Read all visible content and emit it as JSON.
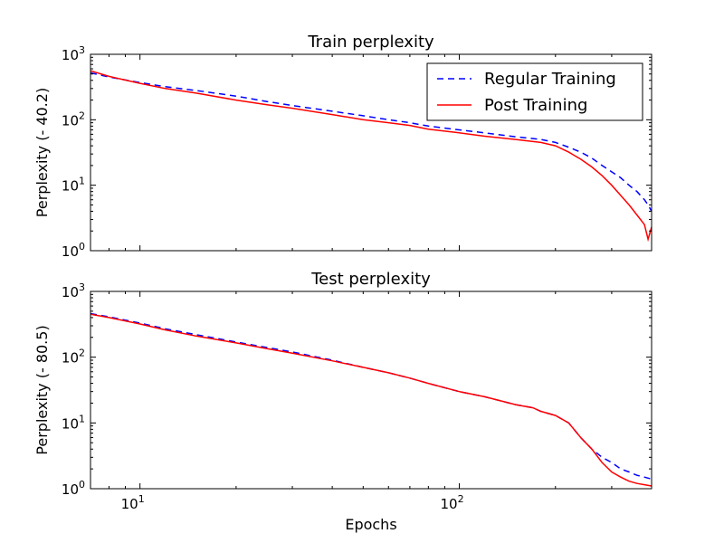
{
  "chart_data": [
    {
      "type": "line",
      "title": "Train perplexity",
      "xlabel": "",
      "ylabel": "Perplexity (- 40.2)",
      "xscale": "log",
      "yscale": "log",
      "xlim": [
        7,
        400
      ],
      "ylim": [
        1,
        1000
      ],
      "yticks": [
        {
          "value": 1,
          "base": "10",
          "exp": "0"
        },
        {
          "value": 10,
          "base": "10",
          "exp": "1"
        },
        {
          "value": 100,
          "base": "10",
          "exp": "2"
        },
        {
          "value": 1000,
          "base": "10",
          "exp": "3"
        }
      ],
      "legend_position": "top-right",
      "grid": false,
      "series": [
        {
          "name": "Regular Training",
          "color": "#0000ff",
          "linestyle": "dashed",
          "x": [
            7,
            8,
            10,
            12,
            15,
            20,
            25,
            30,
            40,
            50,
            60,
            70,
            80,
            100,
            120,
            150,
            180,
            200,
            220,
            240,
            260,
            280,
            300,
            320,
            340,
            360,
            380,
            390,
            400
          ],
          "y": [
            520,
            450,
            370,
            320,
            280,
            230,
            190,
            165,
            135,
            115,
            100,
            90,
            80,
            70,
            63,
            55,
            50,
            45,
            38,
            32,
            26,
            20,
            16,
            13,
            10,
            8,
            6,
            5,
            4
          ]
        },
        {
          "name": "Post Training",
          "color": "#ff0000",
          "linestyle": "solid",
          "x": [
            7,
            8,
            10,
            12,
            15,
            20,
            25,
            30,
            40,
            50,
            60,
            70,
            80,
            100,
            120,
            150,
            180,
            200,
            220,
            240,
            260,
            280,
            300,
            320,
            340,
            360,
            380,
            390,
            400
          ],
          "y": [
            560,
            460,
            360,
            300,
            255,
            200,
            170,
            150,
            120,
            100,
            90,
            82,
            72,
            63,
            56,
            50,
            45,
            40,
            32,
            25,
            19,
            14,
            10,
            7,
            5,
            3.5,
            2.5,
            1.5,
            2.3
          ]
        }
      ]
    },
    {
      "type": "line",
      "title": "Test perplexity",
      "xlabel": "Epochs",
      "ylabel": "Perplexity (- 80.5)",
      "xscale": "log",
      "yscale": "log",
      "xlim": [
        7,
        400
      ],
      "ylim": [
        1,
        1000
      ],
      "xticks": [
        {
          "value": 10,
          "base": "10",
          "exp": "1"
        },
        {
          "value": 100,
          "base": "10",
          "exp": "2"
        }
      ],
      "yticks": [
        {
          "value": 1,
          "base": "10",
          "exp": "0"
        },
        {
          "value": 10,
          "base": "10",
          "exp": "1"
        },
        {
          "value": 100,
          "base": "10",
          "exp": "2"
        },
        {
          "value": 1000,
          "base": "10",
          "exp": "3"
        }
      ],
      "grid": false,
      "series": [
        {
          "name": "Regular Training",
          "color": "#0000ff",
          "linestyle": "dashed",
          "x": [
            7,
            8,
            10,
            12,
            15,
            20,
            25,
            30,
            40,
            50,
            60,
            70,
            80,
            100,
            120,
            150,
            170,
            180,
            200,
            220,
            240,
            260,
            280,
            300,
            320,
            340,
            360,
            380,
            400
          ],
          "y": [
            460,
            410,
            330,
            270,
            220,
            170,
            140,
            120,
            90,
            70,
            58,
            48,
            40,
            30,
            25,
            19,
            17,
            15,
            13,
            10,
            6,
            4,
            3,
            2.5,
            2,
            1.8,
            1.6,
            1.5,
            1.4
          ]
        },
        {
          "name": "Post Training",
          "color": "#ff0000",
          "linestyle": "solid",
          "x": [
            7,
            8,
            10,
            12,
            15,
            20,
            25,
            30,
            40,
            50,
            60,
            70,
            80,
            100,
            120,
            150,
            170,
            180,
            200,
            220,
            240,
            260,
            280,
            300,
            320,
            340,
            360,
            380,
            400
          ],
          "y": [
            450,
            400,
            320,
            260,
            210,
            165,
            135,
            115,
            88,
            70,
            58,
            48,
            40,
            30,
            25,
            19,
            17,
            15,
            13,
            10,
            6,
            4,
            2.5,
            1.8,
            1.5,
            1.3,
            1.2,
            1.15,
            1.1
          ]
        }
      ]
    }
  ]
}
